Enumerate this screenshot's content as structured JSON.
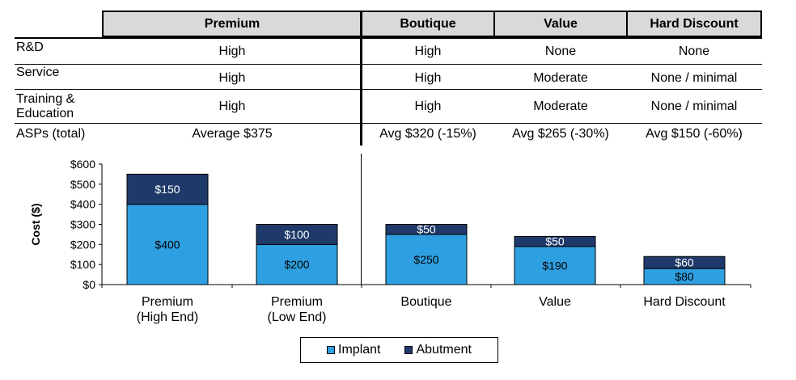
{
  "table": {
    "columns": [
      "Premium",
      "Boutique",
      "Value",
      "Hard Discount"
    ],
    "rows": [
      {
        "label": "R&D",
        "values": [
          "High",
          "High",
          "None",
          "None"
        ]
      },
      {
        "label": "Service",
        "values": [
          "High",
          "High",
          "Moderate",
          "None / minimal"
        ]
      },
      {
        "label": "Training &\nEducation",
        "values": [
          "High",
          "High",
          "Moderate",
          "None / minimal"
        ]
      },
      {
        "label": "ASPs (total)",
        "values": [
          "Average $375",
          "Avg $320 (-15%)",
          "Avg $265 (-30%)",
          "Avg $150 (-60%)"
        ]
      }
    ]
  },
  "chart_data": {
    "type": "bar",
    "stacked": true,
    "categories": [
      "Premium\n(High End)",
      "Premium\n(Low End)",
      "Boutique",
      "Value",
      "Hard Discount"
    ],
    "series": [
      {
        "name": "Implant",
        "color": "#2e9fe0",
        "values": [
          400,
          200,
          250,
          190,
          80
        ]
      },
      {
        "name": "Abutment",
        "color": "#1f3a6a",
        "values": [
          150,
          100,
          50,
          50,
          60
        ]
      }
    ],
    "data_labels": {
      "Implant": [
        "$400",
        "$200",
        "$250",
        "$190",
        "$80"
      ],
      "Abutment": [
        "$150",
        "$100",
        "$50",
        "$50",
        "$60"
      ]
    },
    "ylabel": "Cost ($)",
    "ylim": [
      0,
      600
    ],
    "yticks": [
      0,
      100,
      200,
      300,
      400,
      500,
      600
    ],
    "ytick_labels": [
      "$0",
      "$100",
      "$200",
      "$300",
      "$400",
      "$500",
      "$600"
    ],
    "legend_position": "bottom"
  }
}
